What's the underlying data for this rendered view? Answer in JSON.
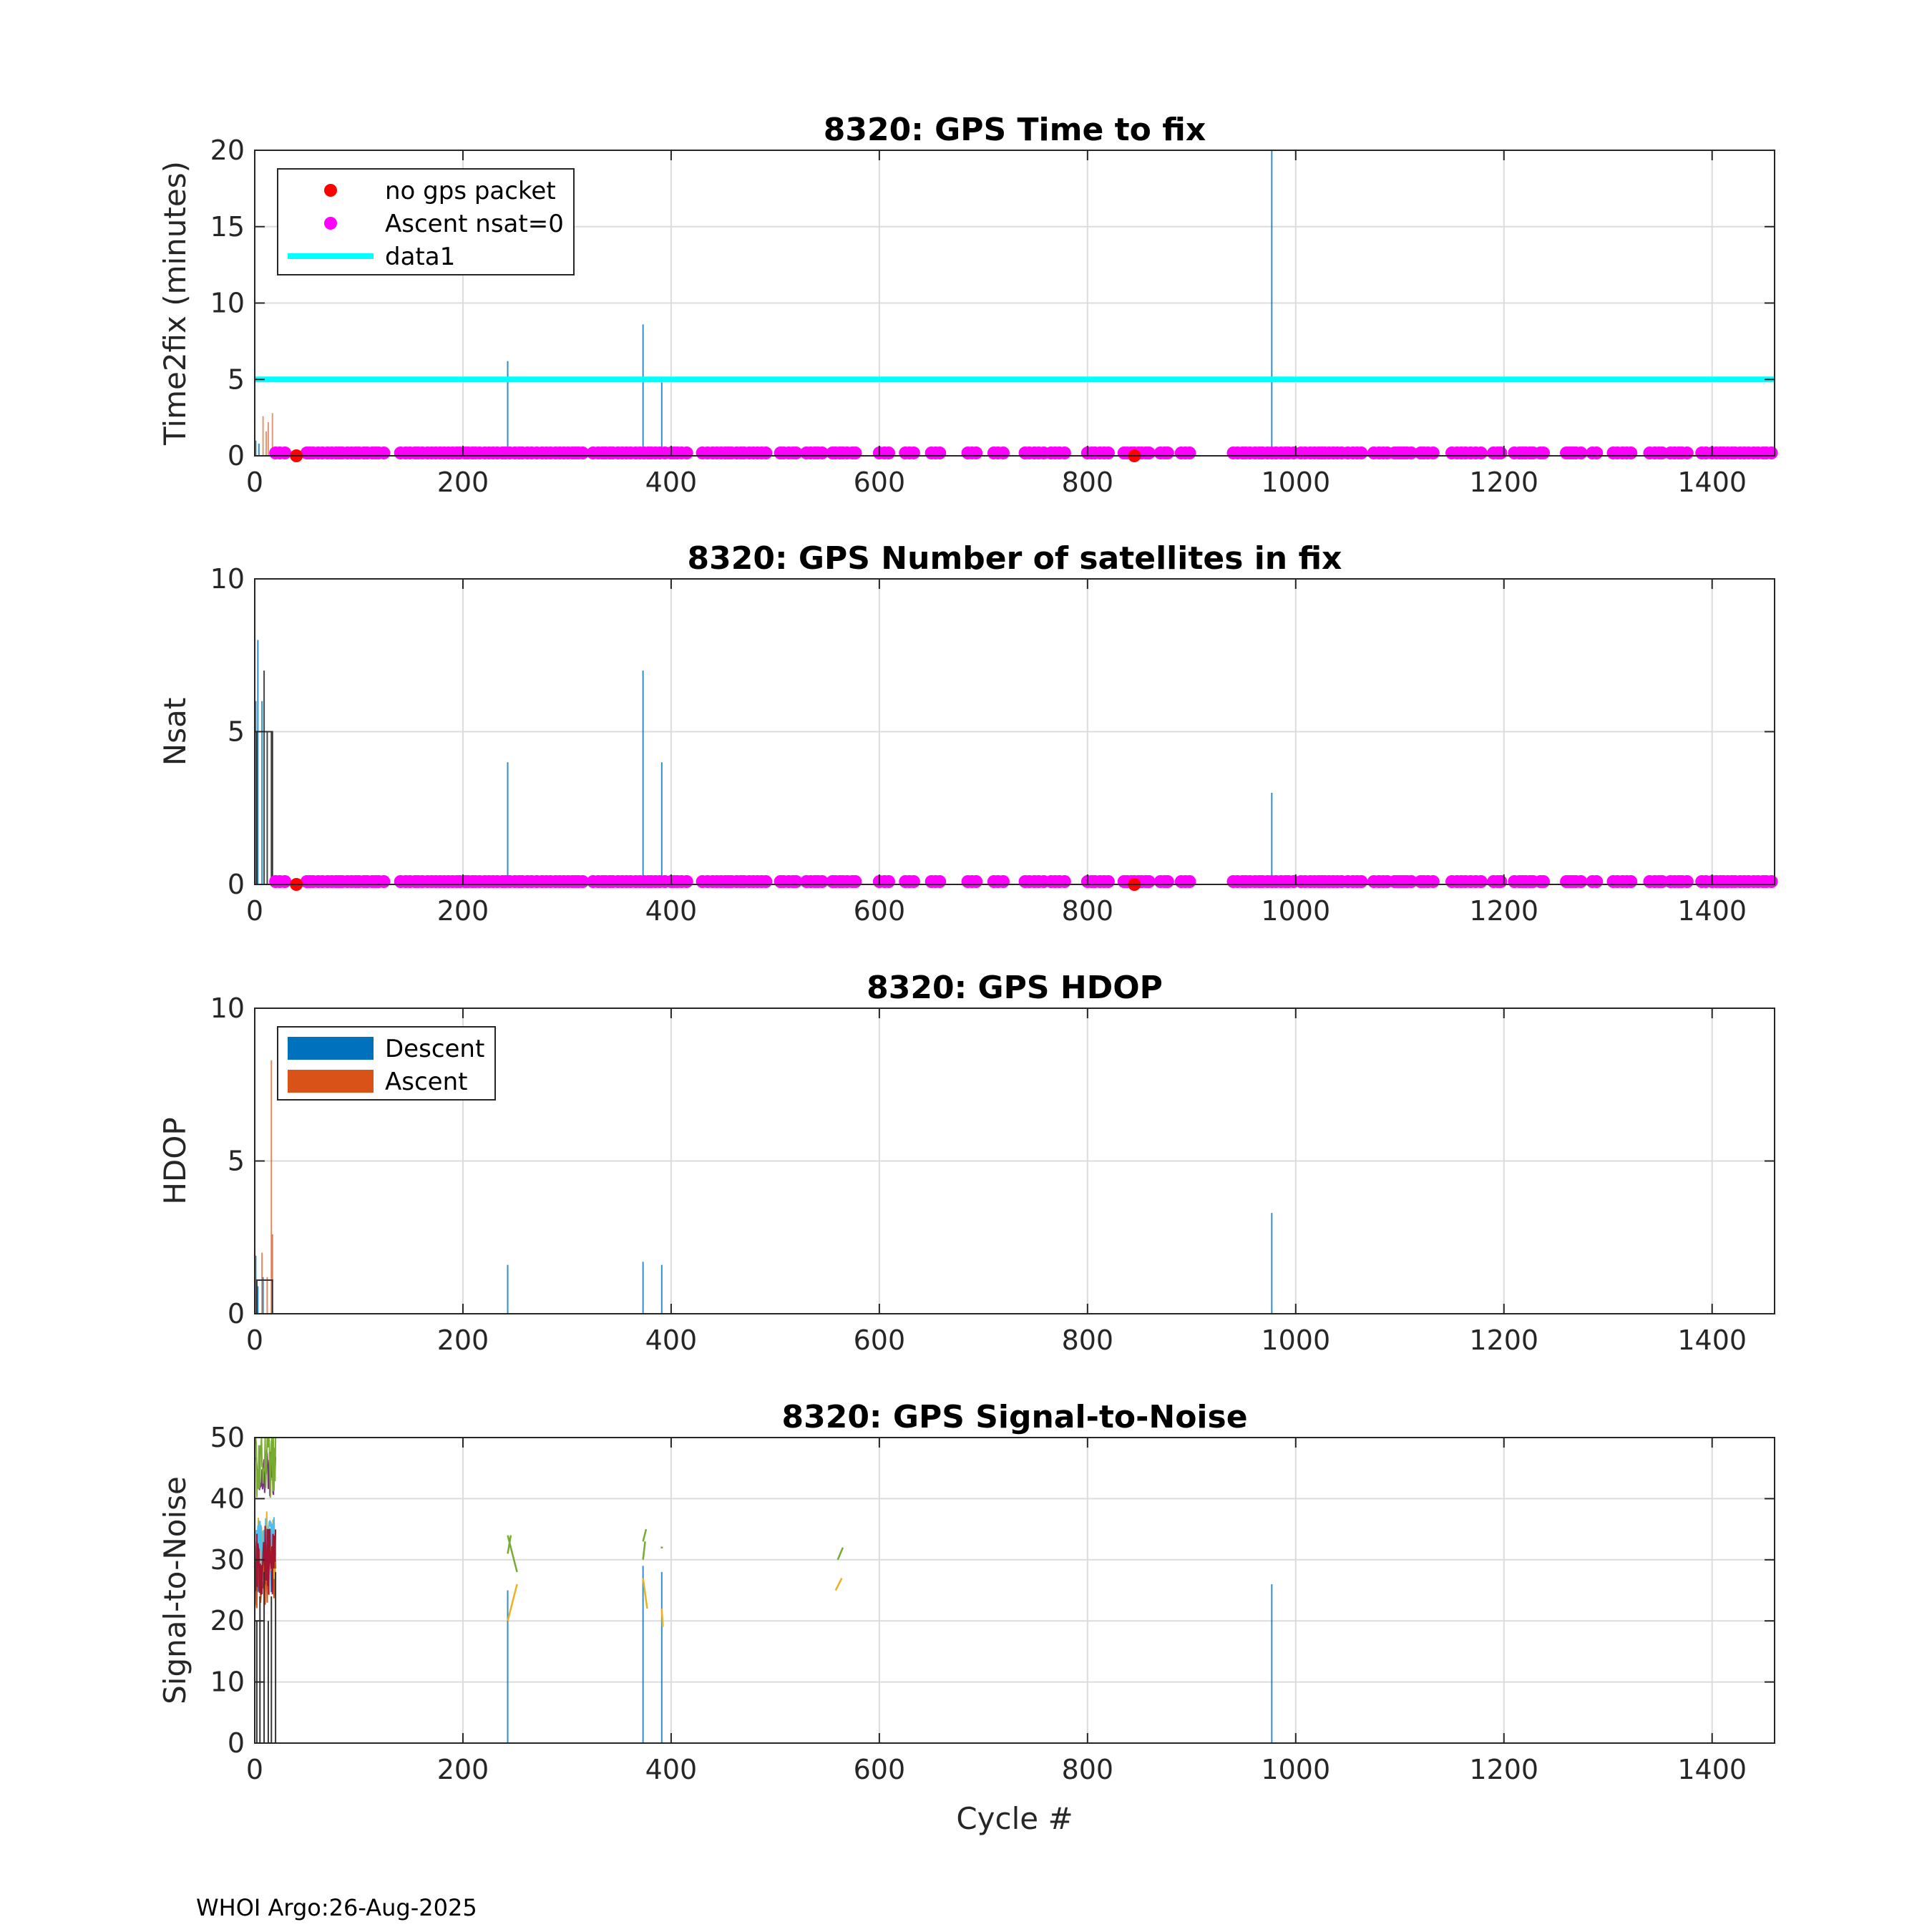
{
  "footer": "WHOI Argo:26-Aug-2025",
  "colors": {
    "no_gps": "#ff0000",
    "nsat0": "#ff00ff",
    "data1": "#00ffff",
    "descent": "#0072bd",
    "ascent": "#d95319",
    "grid": "#dcdcdc",
    "axis": "#262626",
    "snr_series": [
      "#0072bd",
      "#d95319",
      "#edb120",
      "#7e2f8e",
      "#77ac30",
      "#4dbeee",
      "#a2142f"
    ]
  },
  "chart_data": [
    {
      "type": "scatter",
      "title": "8320: GPS Time to fix",
      "xlabel": "",
      "ylabel": "Time2fix (minutes)",
      "xlim": [
        0,
        1460
      ],
      "ylim": [
        0,
        20
      ],
      "xticks": [
        "0",
        "200",
        "400",
        "600",
        "800",
        "1000",
        "1200",
        "1400"
      ],
      "yticks": [
        "0",
        "5",
        "10",
        "15",
        "20"
      ],
      "grid": true,
      "legend": {
        "placement": "top-left",
        "entries": [
          "no gps packet",
          "Ascent nsat=0",
          "data1"
        ]
      },
      "no_gps_packet": {
        "x": [
          40,
          845
        ],
        "y": [
          0,
          0
        ]
      },
      "reference_line": {
        "name": "data1",
        "y": 5
      },
      "descent_spikes": [
        {
          "x": 1,
          "y": 1.0
        },
        {
          "x": 4,
          "y": 0.8
        },
        {
          "x": 243,
          "y": 6.2
        },
        {
          "x": 373,
          "y": 8.6
        },
        {
          "x": 391,
          "y": 4.8
        },
        {
          "x": 977,
          "y": 20
        }
      ],
      "ascent_spikes": [
        {
          "x": 8,
          "y": 2.6
        },
        {
          "x": 11,
          "y": 1.6
        },
        {
          "x": 13,
          "y": 2.2
        },
        {
          "x": 17,
          "y": 2.8
        }
      ]
    },
    {
      "type": "scatter",
      "title": "8320: GPS Number of satellites in fix",
      "xlabel": "",
      "ylabel": "Nsat",
      "xlim": [
        0,
        1460
      ],
      "ylim": [
        0,
        10
      ],
      "xticks": [
        "0",
        "200",
        "400",
        "600",
        "800",
        "1000",
        "1200",
        "1400"
      ],
      "yticks": [
        "0",
        "5",
        "10"
      ],
      "grid": true,
      "no_gps_packet": {
        "x": [
          40,
          845
        ],
        "y": [
          0,
          0
        ]
      },
      "descent_spikes": [
        {
          "x": 1,
          "y": 6
        },
        {
          "x": 3,
          "y": 8
        },
        {
          "x": 7,
          "y": 6
        },
        {
          "x": 243,
          "y": 4
        },
        {
          "x": 373,
          "y": 7
        },
        {
          "x": 391,
          "y": 4
        },
        {
          "x": 977,
          "y": 3
        }
      ],
      "ascent_spikes": [
        {
          "x": 9,
          "y": 7
        },
        {
          "x": 12,
          "y": 5
        },
        {
          "x": 16,
          "y": 5
        }
      ]
    },
    {
      "type": "bar",
      "title": "8320: GPS HDOP",
      "xlabel": "",
      "ylabel": "HDOP",
      "xlim": [
        0,
        1460
      ],
      "ylim": [
        0,
        10
      ],
      "xticks": [
        "0",
        "200",
        "400",
        "600",
        "800",
        "1000",
        "1200",
        "1400"
      ],
      "yticks": [
        "0",
        "5",
        "10"
      ],
      "grid": true,
      "legend": {
        "placement": "top-left",
        "entries": [
          "Descent",
          "Ascent"
        ]
      },
      "descent_spikes": [
        {
          "x": 1,
          "y": 1.9
        },
        {
          "x": 3,
          "y": 0.9
        },
        {
          "x": 8,
          "y": 1.2
        },
        {
          "x": 243,
          "y": 1.6
        },
        {
          "x": 373,
          "y": 1.7
        },
        {
          "x": 391,
          "y": 1.6
        },
        {
          "x": 977,
          "y": 3.3
        }
      ],
      "ascent_spikes": [
        {
          "x": 7,
          "y": 2.0
        },
        {
          "x": 12,
          "y": 1.2
        },
        {
          "x": 16,
          "y": 8.3
        },
        {
          "x": 17,
          "y": 2.6
        }
      ]
    },
    {
      "type": "line",
      "title": "8320: GPS Signal-to-Noise",
      "xlabel": "Cycle #",
      "ylabel": "Signal-to-Noise",
      "xlim": [
        0,
        1460
      ],
      "ylim": [
        0,
        50
      ],
      "xticks": [
        "0",
        "200",
        "400",
        "600",
        "800",
        "1000",
        "1200",
        "1400"
      ],
      "yticks": [
        "0",
        "10",
        "20",
        "30",
        "40",
        "50"
      ],
      "grid": true,
      "descent_spikes": [
        {
          "x": 243,
          "y": 25
        },
        {
          "x": 373,
          "y": 29
        },
        {
          "x": 391,
          "y": 28
        },
        {
          "x": 977,
          "y": 26
        }
      ],
      "segments": [
        {
          "color": 4,
          "x": [
            243,
            252
          ],
          "y": [
            34,
            28
          ]
        },
        {
          "color": 4,
          "x": [
            243,
            246
          ],
          "y": [
            31,
            34
          ]
        },
        {
          "color": 2,
          "x": [
            243,
            252
          ],
          "y": [
            20,
            26
          ]
        },
        {
          "color": 4,
          "x": [
            373,
            376
          ],
          "y": [
            33,
            35
          ]
        },
        {
          "color": 4,
          "x": [
            373,
            375
          ],
          "y": [
            30,
            33
          ]
        },
        {
          "color": 2,
          "x": [
            373,
            377
          ],
          "y": [
            27,
            22
          ]
        },
        {
          "color": 4,
          "x": [
            390,
            392
          ],
          "y": [
            32,
            32
          ]
        },
        {
          "color": 2,
          "x": [
            391,
            392
          ],
          "y": [
            22,
            19
          ]
        },
        {
          "color": 4,
          "x": [
            560,
            565
          ],
          "y": [
            30,
            32
          ]
        },
        {
          "color": 2,
          "x": [
            558,
            564
          ],
          "y": [
            25,
            27
          ]
        }
      ]
    }
  ]
}
